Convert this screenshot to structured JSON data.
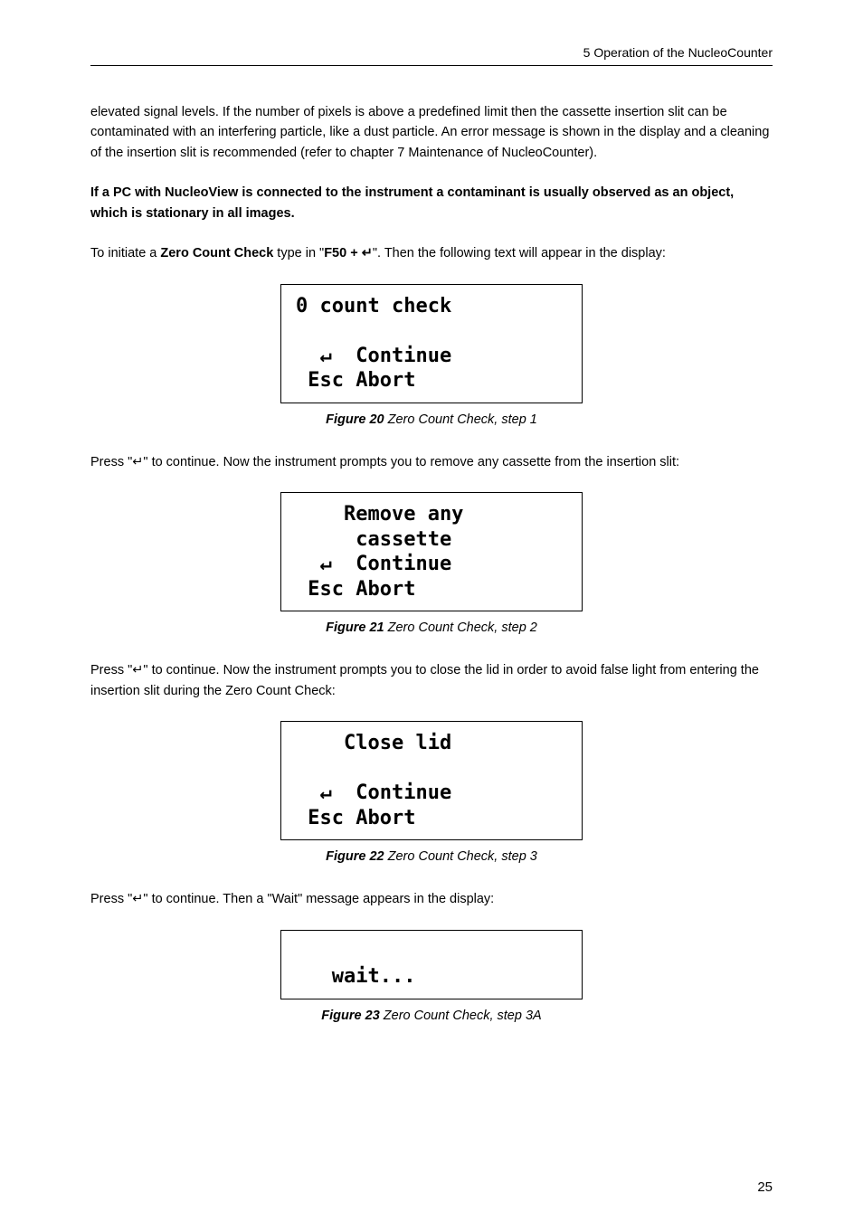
{
  "header": {
    "text": "5 Operation of the NucleoCounter"
  },
  "para1": "elevated signal levels. If the number of pixels is above a predefined limit then the cassette insertion slit can be contaminated with an interfering particle, like a dust particle. An error message is shown in the display and a cleaning of the insertion slit is recommended (refer to chapter 7 Maintenance of NucleoCounter).",
  "para2": "If a PC with NucleoView is connected to the instrument a contaminant is usually observed as an object, which is stationary in all images.",
  "para3_pre": "To initiate a ",
  "para3_b1": "Zero Count Check",
  "para3_mid": " type in \"",
  "para3_b2": "F50 + ↵",
  "para3_post": "\". Then the following text will appear in the display:",
  "box1": "0 count check\n\n  ↵  Continue\n Esc Abort",
  "fig20_label": "Figure 20",
  "fig20_caption": " Zero Count Check, step 1",
  "para4": "Press \"↵\" to continue. Now the instrument prompts you to remove any cassette from the insertion slit:",
  "box2": "    Remove any\n     cassette\n  ↵  Continue\n Esc Abort",
  "fig21_label": "Figure 21",
  "fig21_caption": " Zero Count Check, step 2",
  "para5": "Press \"↵\" to continue. Now the instrument prompts you to close the lid in order to avoid false light from entering the insertion slit during the Zero Count Check:",
  "box3": "    Close lid\n\n  ↵  Continue\n Esc Abort",
  "fig22_label": "Figure 22",
  "fig22_caption": " Zero Count Check, step 3",
  "para6": "Press \"↵\" to continue. Then a \"Wait\" message appears in the display:",
  "box4": "\n   wait...\n",
  "fig23_label": "Figure 23",
  "fig23_caption": " Zero Count Check, step 3A",
  "page_number": "25"
}
